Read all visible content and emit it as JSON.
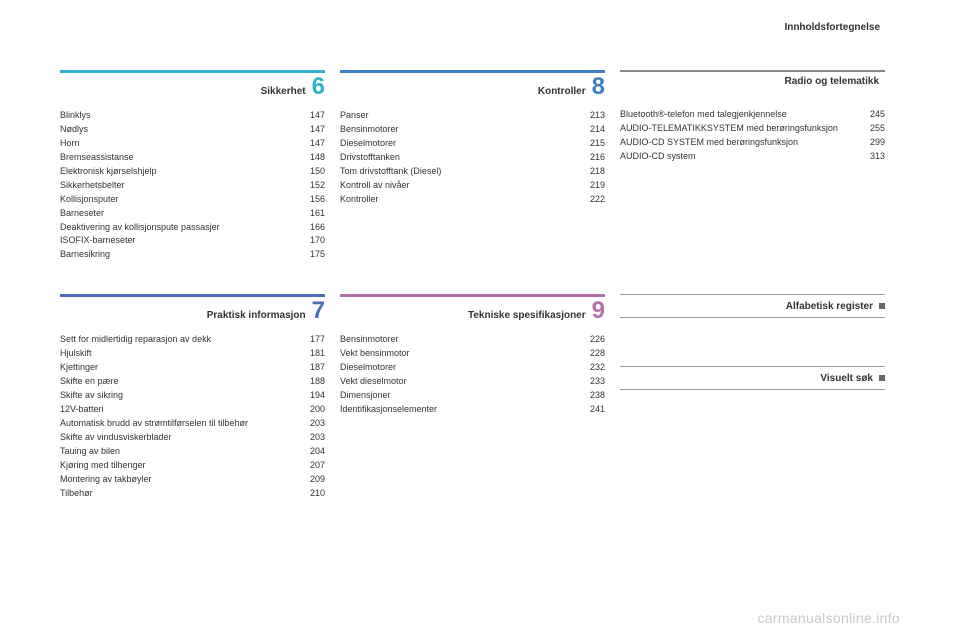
{
  "page_header": "Innholdsfortegnelse",
  "watermark": "carmanualsonline.info",
  "colors": {
    "s6": "#2fb3c9",
    "s7": "#4a6fb5",
    "s8": "#3f7fc2",
    "s9": "#b86fa9",
    "radio": "#888888",
    "index": "#888888"
  },
  "sections": {
    "s6": {
      "title": "Sikkerhet",
      "number": "6",
      "items": [
        {
          "label": "Blinklys",
          "page": "147"
        },
        {
          "label": "Nødlys",
          "page": "147"
        },
        {
          "label": "Horn",
          "page": "147"
        },
        {
          "label": "Bremseassistanse",
          "page": "148"
        },
        {
          "label": "Elektronisk kjørselshjelp",
          "page": "150"
        },
        {
          "label": "Sikkerhetsbelter",
          "page": "152"
        },
        {
          "label": "Kollisjonsputer",
          "page": "156"
        },
        {
          "label": "Barneseter",
          "page": "161"
        },
        {
          "label": "Deaktivering av kollisjonspute passasjer",
          "page": "166"
        },
        {
          "label": "ISOFIX-barneseter",
          "page": "170"
        },
        {
          "label": "Barnesikring",
          "page": "175"
        }
      ]
    },
    "s7": {
      "title": "Praktisk informasjon",
      "number": "7",
      "items": [
        {
          "label": "Sett for midlertidig reparasjon av dekk",
          "page": "177"
        },
        {
          "label": "Hjulskift",
          "page": "181"
        },
        {
          "label": "Kjettinger",
          "page": "187"
        },
        {
          "label": "Skifte en pære",
          "page": "188"
        },
        {
          "label": "Skifte av sikring",
          "page": "194"
        },
        {
          "label": "12V-batteri",
          "page": "200"
        },
        {
          "label": "Automatisk brudd av strømtilførselen til tilbehør",
          "page": "203"
        },
        {
          "label": "Skifte av vindusviskerblader",
          "page": "203"
        },
        {
          "label": "Tauing av bilen",
          "page": "204"
        },
        {
          "label": "Kjøring med tilhenger",
          "page": "207"
        },
        {
          "label": "Montering av takbøyler",
          "page": "209"
        },
        {
          "label": "Tilbehør",
          "page": "210"
        }
      ]
    },
    "s8": {
      "title": "Kontroller",
      "number": "8",
      "items": [
        {
          "label": "Panser",
          "page": "213"
        },
        {
          "label": "Bensinmotorer",
          "page": "214"
        },
        {
          "label": "Dieselmotorer",
          "page": "215"
        },
        {
          "label": "Drivstofftanken",
          "page": "216"
        },
        {
          "label": "Tom drivstofftank (Diesel)",
          "page": "218"
        },
        {
          "label": "Kontroll av nivåer",
          "page": "219"
        },
        {
          "label": "Kontroller",
          "page": "222"
        }
      ]
    },
    "s9": {
      "title": "Tekniske spesifikasjoner",
      "number": "9",
      "items": [
        {
          "label": "Bensinmotorer",
          "page": "226"
        },
        {
          "label": "Vekt bensinmotor",
          "page": "228"
        },
        {
          "label": "Dieselmotorer",
          "page": "232"
        },
        {
          "label": "Vekt dieselmotor",
          "page": "233"
        },
        {
          "label": "Dimensjoner",
          "page": "238"
        },
        {
          "label": "Identifikasjonselementer",
          "page": "241"
        }
      ]
    },
    "radio": {
      "title": "Radio og telematikk",
      "items": [
        {
          "label": "Bluetooth®-telefon med talegjenkjennelse",
          "page": "245"
        },
        {
          "label": "AUDIO-TELEMATIKKSYSTEM med berøringsfunksjon",
          "page": "255"
        },
        {
          "label": "AUDIO-CD SYSTEM med berøringsfunksjon",
          "page": "299"
        },
        {
          "label": "AUDIO-CD system",
          "page": "313"
        }
      ]
    },
    "alpha": {
      "title": "Alfabetisk register"
    },
    "visual": {
      "title": "Visuelt søk"
    }
  }
}
